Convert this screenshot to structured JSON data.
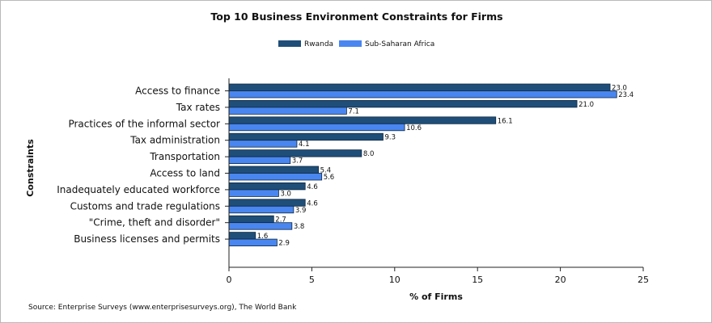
{
  "chart_data": {
    "type": "bar",
    "orientation": "horizontal",
    "title": "Top 10 Business Environment Constraints for Firms",
    "xlabel": "% of Firms",
    "ylabel": "Constraints",
    "xlim": [
      0,
      25
    ],
    "xticks": [
      0,
      5,
      10,
      15,
      20,
      25
    ],
    "grid": false,
    "legend_position": "top-center",
    "categories": [
      "Access to finance",
      "Tax rates",
      "Practices of the informal sector",
      "Tax administration",
      "Transportation",
      "Access to land",
      "Inadequately educated workforce",
      "Customs and trade regulations",
      "\"Crime, theft and disorder\"",
      "Business licenses and permits"
    ],
    "series": [
      {
        "name": "Rwanda",
        "color": "#1f4e79",
        "values": [
          23.0,
          21.0,
          16.1,
          9.3,
          8.0,
          5.4,
          4.6,
          4.6,
          2.7,
          1.6
        ]
      },
      {
        "name": "Sub-Saharan Africa",
        "color": "#4a86f0",
        "values": [
          23.4,
          7.1,
          10.6,
          4.1,
          3.7,
          5.6,
          3.0,
          3.9,
          3.8,
          2.9
        ]
      }
    ],
    "source": "Source: Enterprise Surveys (www.enterprisesurveys.org), The World Bank"
  }
}
